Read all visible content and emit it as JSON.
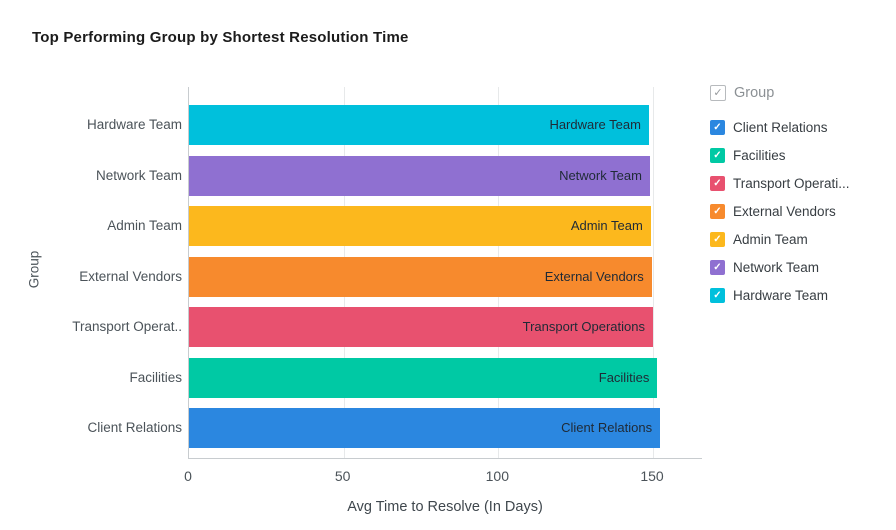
{
  "title": "Top Performing Group by Shortest Resolution Time",
  "chart_data": {
    "type": "bar",
    "orientation": "horizontal",
    "title": "Top Performing Group by Shortest Resolution Time",
    "xlabel": "Avg Time to Resolve (In Days)",
    "ylabel": "Group",
    "xlim": [
      0,
      166
    ],
    "xticks": [
      0,
      50,
      100,
      150
    ],
    "grid": true,
    "categories": [
      "Hardware Team",
      "Network Team",
      "Admin Team",
      "External Vendors",
      "Transport Operations",
      "Facilities",
      "Client Relations"
    ],
    "axis_tick_labels": [
      "Hardware Team",
      "Network Team",
      "Admin Team",
      "External Vendors",
      "Transport Operat..",
      "Facilities",
      "Client Relations"
    ],
    "bar_labels": [
      "Hardware Team",
      "Network Team",
      "Admin Team",
      "External Vendors",
      "Transport Operations",
      "Facilities",
      "Client Relations"
    ],
    "values": [
      148.7,
      149.0,
      149.3,
      149.6,
      150.0,
      151.4,
      152.3
    ],
    "colors": [
      "#00c0dc",
      "#8f70d1",
      "#fcb81d",
      "#f78a2d",
      "#e8516f",
      "#00c9a4",
      "#2b87e0"
    ]
  },
  "legend": {
    "header_label": "Group",
    "check_glyph": "✓",
    "items": [
      {
        "label": "Client Relations",
        "color": "#2b87e0"
      },
      {
        "label": "Facilities",
        "color": "#00c9a4"
      },
      {
        "label": "Transport Operati...",
        "color": "#e8516f"
      },
      {
        "label": "External Vendors",
        "color": "#f78a2d"
      },
      {
        "label": "Admin Team",
        "color": "#fcb81d"
      },
      {
        "label": "Network Team",
        "color": "#8f70d1"
      },
      {
        "label": "Hardware Team",
        "color": "#00c0dc"
      }
    ]
  }
}
